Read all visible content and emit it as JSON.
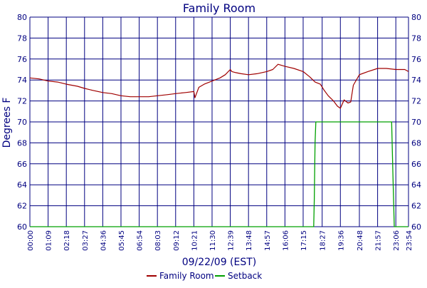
{
  "chart_data": {
    "type": "line",
    "title": "Family Room",
    "xlabel": "09/22/09 (EST)",
    "ylabel": "Degrees F",
    "ylim": [
      60,
      80
    ],
    "xlim": [
      "00:00",
      "23:54"
    ],
    "y_ticks": [
      60,
      62,
      64,
      66,
      68,
      70,
      72,
      74,
      76,
      78,
      80
    ],
    "x_ticks": [
      "00:00",
      "01:09",
      "02:18",
      "03:27",
      "04:36",
      "05:45",
      "06:54",
      "08:03",
      "09:12",
      "10:21",
      "11:30",
      "12:39",
      "13:48",
      "14:57",
      "16:06",
      "17:15",
      "18:27",
      "19:36",
      "20:48",
      "21:57",
      "23:06",
      "23:54"
    ],
    "grid": true,
    "legend_position": "bottom-center",
    "series": [
      {
        "name": "Family Room",
        "color": "#a00000",
        "x": [
          "00:00",
          "00:35",
          "01:09",
          "01:45",
          "02:18",
          "03:00",
          "03:27",
          "04:00",
          "04:36",
          "05:10",
          "05:45",
          "06:20",
          "06:54",
          "07:30",
          "08:03",
          "08:40",
          "09:12",
          "09:50",
          "10:21",
          "10:25",
          "10:40",
          "11:00",
          "11:30",
          "12:00",
          "12:20",
          "12:39",
          "12:45",
          "13:00",
          "13:20",
          "13:48",
          "14:20",
          "14:57",
          "15:20",
          "15:40",
          "16:06",
          "16:40",
          "17:15",
          "17:40",
          "18:00",
          "18:20",
          "18:35",
          "18:50",
          "19:10",
          "19:25",
          "19:36",
          "19:50",
          "20:05",
          "20:15",
          "20:25",
          "20:48",
          "21:20",
          "21:57",
          "22:30",
          "23:06",
          "23:40",
          "23:54"
        ],
        "values": [
          74.2,
          74.1,
          73.9,
          73.8,
          73.6,
          73.4,
          73.2,
          73.0,
          72.8,
          72.7,
          72.5,
          72.4,
          72.4,
          72.4,
          72.5,
          72.6,
          72.7,
          72.8,
          72.9,
          72.3,
          73.3,
          73.6,
          73.9,
          74.2,
          74.5,
          75.0,
          74.8,
          74.7,
          74.6,
          74.5,
          74.6,
          74.8,
          75.0,
          75.5,
          75.3,
          75.1,
          74.8,
          74.3,
          73.8,
          73.6,
          73.0,
          72.5,
          72.0,
          71.5,
          71.3,
          72.1,
          71.8,
          71.9,
          73.5,
          74.5,
          74.8,
          75.1,
          75.1,
          75.0,
          75.0,
          74.8
        ]
      },
      {
        "name": "Setback",
        "color": "#00a000",
        "x": [
          "00:00",
          "17:55",
          "17:57",
          "18:00",
          "18:03",
          "22:50",
          "22:55",
          "23:00",
          "23:54"
        ],
        "values": [
          60,
          60,
          62.5,
          68,
          70,
          70,
          65,
          60,
          60
        ]
      }
    ]
  }
}
